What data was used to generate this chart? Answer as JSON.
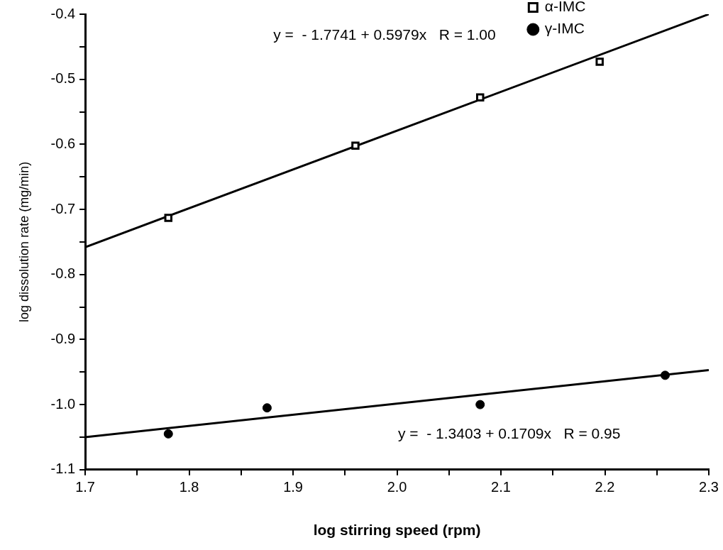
{
  "chart_data": {
    "type": "scatter",
    "xlabel": "log stirring speed (rpm)",
    "ylabel": "log dissolution rate (mg/min)",
    "xlim": [
      1.7,
      2.3
    ],
    "ylim": [
      -1.1,
      -0.4
    ],
    "xticks": [
      {
        "value": 1.7,
        "label": "1.7"
      },
      {
        "value": 1.75,
        "label": null
      },
      {
        "value": 1.8,
        "label": "1.8"
      },
      {
        "value": 1.85,
        "label": null
      },
      {
        "value": 1.9,
        "label": "1.9"
      },
      {
        "value": 1.95,
        "label": null
      },
      {
        "value": 2.0,
        "label": "2.0"
      },
      {
        "value": 2.05,
        "label": null
      },
      {
        "value": 2.1,
        "label": "2.1"
      },
      {
        "value": 2.15,
        "label": null
      },
      {
        "value": 2.2,
        "label": "2.2"
      },
      {
        "value": 2.25,
        "label": null
      },
      {
        "value": 2.3,
        "label": "2.3"
      }
    ],
    "yticks": [
      {
        "value": -1.1,
        "label": "-1.1"
      },
      {
        "value": -1.05,
        "label": null
      },
      {
        "value": -1.0,
        "label": "-1.0"
      },
      {
        "value": -0.95,
        "label": null
      },
      {
        "value": -0.9,
        "label": "-0.9"
      },
      {
        "value": -0.85,
        "label": null
      },
      {
        "value": -0.8,
        "label": "-0.8"
      },
      {
        "value": -0.75,
        "label": null
      },
      {
        "value": -0.7,
        "label": "-0.7"
      },
      {
        "value": -0.65,
        "label": null
      },
      {
        "value": -0.6,
        "label": "-0.6"
      },
      {
        "value": -0.55,
        "label": null
      },
      {
        "value": -0.5,
        "label": "-0.5"
      },
      {
        "value": -0.45,
        "label": null
      },
      {
        "value": -0.4,
        "label": "-0.4"
      }
    ],
    "grid": false,
    "legend": "right",
    "series": [
      {
        "name": "α-IMC",
        "type": "scatter",
        "marker": "square",
        "color": "#000000",
        "x": [
          1.78,
          1.96,
          2.08,
          2.195
        ],
        "values": [
          -0.713,
          -0.602,
          -0.528,
          -0.473
        ]
      },
      {
        "name": "γ-IMC",
        "type": "scatter",
        "marker": "circle",
        "color": "#000000",
        "x": [
          1.78,
          1.875,
          2.08,
          2.258
        ],
        "values": [
          -1.045,
          -1.005,
          -1.0,
          -0.955
        ]
      },
      {
        "type": "line",
        "marker": "none",
        "color": "#000000",
        "x": [
          1.7,
          2.3
        ],
        "values": [
          -0.758,
          -0.4
        ]
      },
      {
        "type": "line",
        "marker": "none",
        "color": "#000000",
        "x": [
          1.7,
          2.3
        ],
        "values": [
          -1.05,
          -0.947
        ]
      }
    ],
    "annotations": [
      "y =  - 1.7741 + 0.5979x   R = 1.00",
      "y =  - 1.3403 + 0.1709x   R = 0.95"
    ]
  }
}
